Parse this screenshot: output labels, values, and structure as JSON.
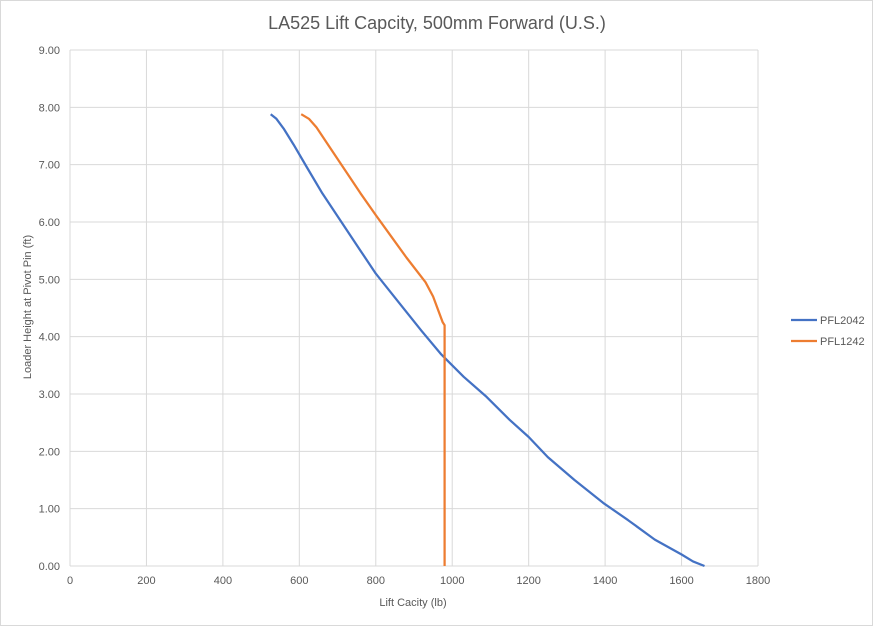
{
  "chart_data": {
    "type": "line",
    "title": "LA525 Lift Capcity, 500mm Forward (U.S.)",
    "xlabel": "Lift Cacity (lb)",
    "ylabel": "Loader Height at Pivot Pin (ft)",
    "xlim": [
      0,
      1800
    ],
    "ylim": [
      0,
      9
    ],
    "x_ticks": [
      0,
      200,
      400,
      600,
      800,
      1000,
      1200,
      1400,
      1600,
      1800
    ],
    "y_ticks": [
      0,
      1,
      2,
      3,
      4,
      5,
      6,
      7,
      8,
      9
    ],
    "x_tick_labels": [
      "0",
      "200",
      "400",
      "600",
      "800",
      "1000",
      "1200",
      "1400",
      "1600",
      "1800"
    ],
    "y_tick_labels": [
      "0.00",
      "1.00",
      "2.00",
      "3.00",
      "4.00",
      "5.00",
      "6.00",
      "7.00",
      "8.00",
      "9.00"
    ],
    "grid": true,
    "legend_position": "right",
    "series": [
      {
        "name": "PFL2042",
        "color": "#4472c4",
        "points": [
          [
            525,
            7.88
          ],
          [
            540,
            7.8
          ],
          [
            560,
            7.62
          ],
          [
            585,
            7.35
          ],
          [
            620,
            6.95
          ],
          [
            660,
            6.5
          ],
          [
            710,
            6.0
          ],
          [
            760,
            5.5
          ],
          [
            800,
            5.1
          ],
          [
            860,
            4.6
          ],
          [
            920,
            4.1
          ],
          [
            970,
            3.7
          ],
          [
            1030,
            3.3
          ],
          [
            1090,
            2.95
          ],
          [
            1150,
            2.55
          ],
          [
            1200,
            2.25
          ],
          [
            1250,
            1.9
          ],
          [
            1320,
            1.5
          ],
          [
            1395,
            1.1
          ],
          [
            1460,
            0.8
          ],
          [
            1530,
            0.46
          ],
          [
            1600,
            0.2
          ],
          [
            1630,
            0.08
          ],
          [
            1660,
            0.0
          ]
        ]
      },
      {
        "name": "PFL1242",
        "color": "#ed7d31",
        "points": [
          [
            605,
            7.88
          ],
          [
            625,
            7.8
          ],
          [
            645,
            7.65
          ],
          [
            680,
            7.3
          ],
          [
            720,
            6.9
          ],
          [
            760,
            6.5
          ],
          [
            800,
            6.12
          ],
          [
            840,
            5.75
          ],
          [
            880,
            5.38
          ],
          [
            930,
            4.95
          ],
          [
            950,
            4.7
          ],
          [
            975,
            4.25
          ],
          [
            980,
            4.2
          ],
          [
            980,
            0.0
          ]
        ]
      }
    ]
  }
}
